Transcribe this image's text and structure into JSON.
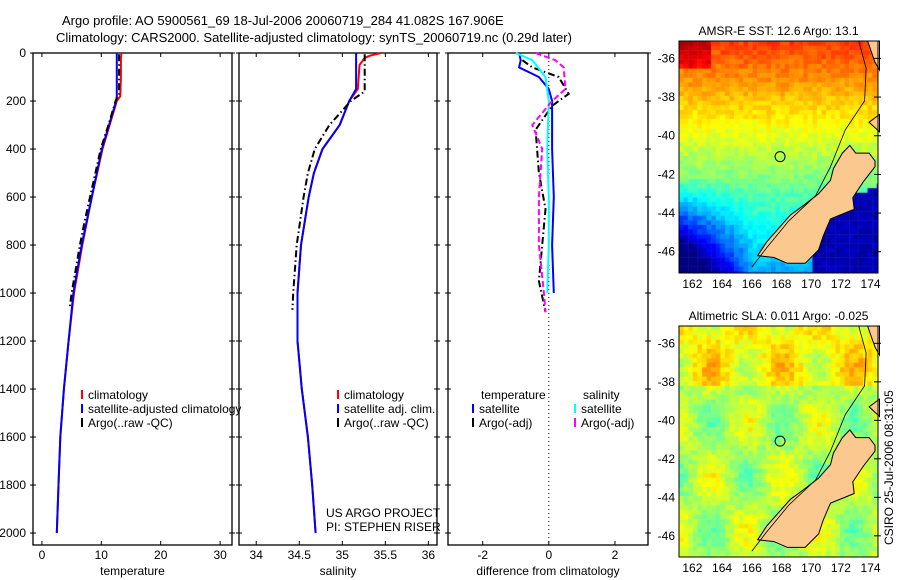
{
  "header": {
    "line1": "Argo profile: AO 5900561_69 18-Jul-2006 20060719_284 41.082S 167.906E",
    "line2": "Climatology: CARS2000. Satellite-adjusted climatology: synTS_20060719.nc (0.29d later)"
  },
  "credit": {
    "line1": "US ARGO PROJECT",
    "line2": "PI: STEPHEN RISER"
  },
  "stamp": "CSIRO 25-Jul-2006 08:31:05",
  "colors": {
    "climatology": "#ff0000",
    "satellite": "#0000ff",
    "argo": "#000000",
    "sal_satellite": "#00ffff",
    "sal_argo": "#ff00ff"
  },
  "chart_data": [
    {
      "type": "line",
      "xlabel": "temperature",
      "ylabel": "",
      "xlim": [
        -1.5,
        32
      ],
      "ylim": [
        2050,
        0
      ],
      "xticks": [
        "0",
        "10",
        "20",
        "30"
      ],
      "xtick_values": [
        0,
        10,
        20,
        30
      ],
      "yticks": [
        "0",
        "200",
        "400",
        "600",
        "800",
        "1000",
        "1200",
        "1400",
        "1600",
        "1800",
        "2000"
      ],
      "ytick_values": [
        0,
        200,
        400,
        600,
        800,
        1000,
        1200,
        1400,
        1600,
        1800,
        2000
      ],
      "legend": [
        "climatology",
        "satellite-adjusted climatology",
        "Argo(..raw -QC)"
      ],
      "series": [
        {
          "name": "climatology",
          "color": "#ff0000",
          "dash": "solid",
          "depth": [
            0,
            20,
            100,
            180,
            200,
            400,
            600,
            800,
            1000,
            1200,
            1400,
            1600,
            1800,
            2000
          ],
          "values": [
            13.4,
            13.3,
            13.3,
            13.2,
            12.6,
            10.2,
            8.4,
            6.8,
            5.4,
            4.5,
            3.7,
            3.1,
            2.8,
            2.5
          ]
        },
        {
          "name": "satellite-adjusted climatology",
          "color": "#0000ff",
          "dash": "solid",
          "depth": [
            0,
            20,
            100,
            180,
            200,
            400,
            600,
            800,
            1000,
            1200,
            1400,
            1600,
            1800,
            2000
          ],
          "values": [
            12.6,
            12.6,
            12.6,
            12.6,
            12.5,
            10.1,
            8.4,
            6.7,
            5.3,
            4.5,
            3.7,
            3.1,
            2.8,
            2.5
          ]
        },
        {
          "name": "Argo(..raw -QC)",
          "color": "#000000",
          "dash": "dashdot",
          "depth": [
            5,
            50,
            100,
            170,
            200,
            300,
            400,
            500,
            600,
            700,
            800,
            900,
            1000,
            1060
          ],
          "values": [
            13.0,
            13.0,
            13.0,
            13.0,
            12.4,
            11.2,
            9.9,
            9.0,
            8.1,
            7.2,
            6.4,
            5.7,
            5.0,
            4.7
          ]
        }
      ]
    },
    {
      "type": "line",
      "xlabel": "salinity",
      "ylabel": "",
      "xlim": [
        33.8,
        36.1
      ],
      "ylim": [
        2050,
        0
      ],
      "xticks": [
        "34",
        "34.5",
        "35",
        "35.5",
        "36"
      ],
      "xtick_values": [
        34,
        34.5,
        35,
        35.5,
        36
      ],
      "legend": [
        "climatology",
        "satellite adj. clim.",
        "Argo(..raw -QC)"
      ],
      "series": [
        {
          "name": "climatology",
          "color": "#ff0000",
          "dash": "solid",
          "depth": [
            0,
            10,
            20,
            50,
            150,
            200,
            300,
            400,
            500,
            600,
            800,
            1000,
            1200,
            1400,
            1600,
            1800,
            2000
          ],
          "values": [
            35.45,
            35.33,
            35.26,
            35.2,
            35.18,
            35.08,
            34.97,
            34.77,
            34.67,
            34.61,
            34.52,
            34.48,
            34.48,
            34.53,
            34.6,
            34.65,
            34.69
          ]
        },
        {
          "name": "satellite adj. clim.",
          "color": "#0000ff",
          "dash": "solid",
          "depth": [
            0,
            150,
            200,
            300,
            400,
            500,
            600,
            800,
            1000,
            1200,
            1400,
            1600,
            1800,
            2000
          ],
          "values": [
            35.16,
            35.16,
            35.08,
            34.97,
            34.77,
            34.67,
            34.61,
            34.52,
            34.48,
            34.48,
            34.53,
            34.6,
            34.65,
            34.69
          ]
        },
        {
          "name": "Argo(..raw -QC)",
          "color": "#000000",
          "dash": "dashdot",
          "depth": [
            5,
            50,
            160,
            200,
            300,
            400,
            500,
            600,
            800,
            1000,
            1070
          ],
          "values": [
            35.26,
            35.26,
            35.26,
            35.1,
            34.85,
            34.68,
            34.6,
            34.55,
            34.47,
            34.43,
            34.42
          ]
        }
      ]
    },
    {
      "type": "line",
      "xlabel": "difference from climatology",
      "ylabel": "",
      "xlim": [
        -3.05,
        3.0
      ],
      "ylim": [
        2050,
        0
      ],
      "xticks": [
        "-2",
        "0",
        "2"
      ],
      "xtick_values": [
        -2,
        0,
        2
      ],
      "legend_headers": [
        "temperature",
        "salinity"
      ],
      "legend": [
        "satellite",
        "Argo(-adj)",
        "satellite",
        "Argo(-adj)"
      ],
      "series": [
        {
          "name": "temperature satellite",
          "color": "#0000ff",
          "dash": "solid",
          "depth": [
            0,
            30,
            60,
            100,
            150,
            200,
            400,
            600,
            800,
            1000
          ],
          "values": [
            -0.9,
            -0.85,
            -0.9,
            -0.3,
            0.0,
            0.1,
            0.1,
            0.15,
            0.1,
            0.15
          ]
        },
        {
          "name": "temperature Argo(-adj)",
          "color": "#000000",
          "dash": "dashdot",
          "depth": [
            30,
            60,
            100,
            170,
            220,
            320,
            500,
            650,
            800,
            950,
            1080
          ],
          "values": [
            -0.8,
            -0.5,
            0.3,
            0.6,
            0.1,
            -0.4,
            -0.3,
            -0.1,
            -0.2,
            -0.3,
            -0.1
          ]
        },
        {
          "name": "salinity satellite",
          "color": "#00ffff",
          "dash": "solid",
          "depth": [
            0,
            30,
            100,
            200,
            400,
            600,
            800,
            1000
          ],
          "values": [
            -1.0,
            -0.5,
            -0.1,
            0.0,
            -0.05,
            0.0,
            0.0,
            -0.05
          ]
        },
        {
          "name": "salinity Argo(-adj)",
          "color": "#ff00ff",
          "dash": "dashed",
          "depth": [
            0,
            30,
            60,
            150,
            200,
            300,
            400,
            600,
            800,
            1000,
            1080
          ],
          "values": [
            -0.4,
            0.2,
            0.45,
            0.5,
            0.1,
            -0.5,
            -0.2,
            -0.3,
            -0.3,
            -0.15,
            -0.1
          ]
        }
      ]
    },
    {
      "type": "heatmap",
      "title": "AMSR-E SST: 12.6 Argo: 13.1",
      "field": "sst",
      "xlim": [
        161.1,
        174.5
      ],
      "ylim": [
        -47.1,
        -35.1
      ],
      "xticks": [
        "162",
        "164",
        "166",
        "168",
        "170",
        "172",
        "174"
      ],
      "xtick_values": [
        162,
        164,
        166,
        168,
        170,
        172,
        174
      ],
      "yticks": [
        "-36",
        "-38",
        "-40",
        "-42",
        "-44",
        "-46"
      ],
      "ytick_values": [
        -36,
        -38,
        -40,
        -42,
        -44,
        -46
      ],
      "float_position": {
        "lon": 167.906,
        "lat": -41.082
      }
    },
    {
      "type": "heatmap",
      "title": "Altimetric SLA: 0.011 Argo: -0.025",
      "field": "sla",
      "xlim": [
        161.1,
        174.5
      ],
      "ylim": [
        -47.1,
        -35.1
      ],
      "xticks": [
        "162",
        "164",
        "166",
        "168",
        "170",
        "172",
        "174"
      ],
      "xtick_values": [
        162,
        164,
        166,
        168,
        170,
        172,
        174
      ],
      "yticks": [
        "-36",
        "-38",
        "-40",
        "-42",
        "-44",
        "-46"
      ],
      "ytick_values": [
        -36,
        -38,
        -40,
        -42,
        -44,
        -46
      ],
      "float_position": {
        "lon": 167.906,
        "lat": -41.082
      }
    }
  ]
}
